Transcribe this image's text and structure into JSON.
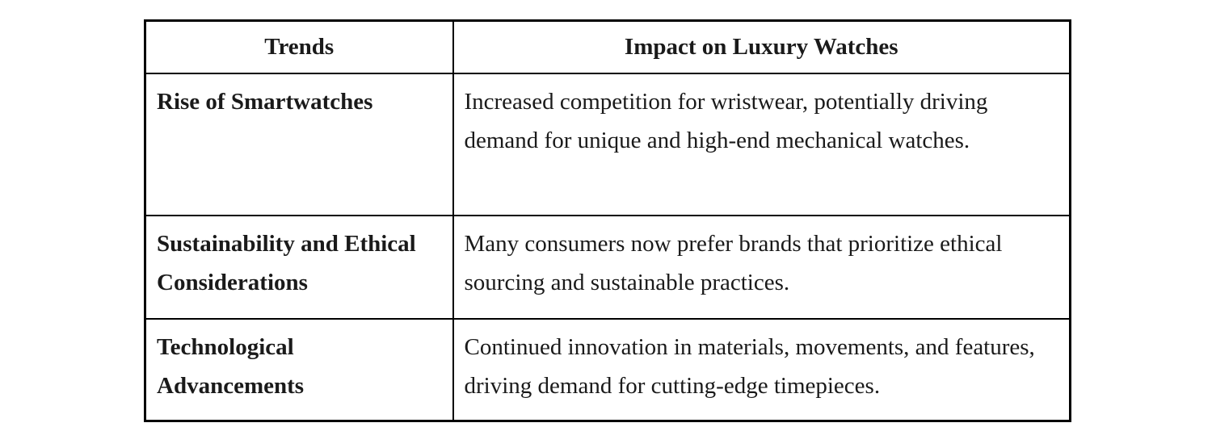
{
  "table": {
    "columns": [
      {
        "label": "Trends"
      },
      {
        "label": "Impact on Luxury Watches"
      }
    ],
    "rows": [
      {
        "trend": "Rise of Smartwatches",
        "impact": "Increased competition for wristwear, potentially driving demand for unique and high-end mechanical watches."
      },
      {
        "trend": "Sustainability and Ethical Considerations",
        "impact": "Many consumers now prefer brands that prioritize ethical sourcing and sustainable practices."
      },
      {
        "trend": "Technological Advancements",
        "impact": "Continued innovation in materials, movements, and features, driving demand for cutting-edge timepieces."
      }
    ],
    "colors": {
      "border": "#000000",
      "text": "#1a1a1a",
      "background": "#ffffff"
    }
  }
}
